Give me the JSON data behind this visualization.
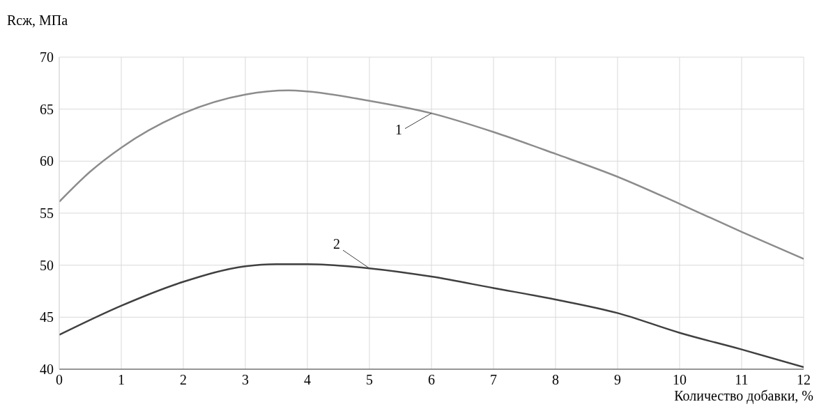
{
  "chart_data": {
    "type": "line",
    "xlabel": "Количество добавки, %",
    "ylabel": "Rсж, МПа",
    "xlim": [
      0,
      12
    ],
    "xticks": [
      0,
      1,
      2,
      3,
      4,
      5,
      6,
      7,
      8,
      9,
      10,
      11,
      12
    ],
    "ylim": [
      40,
      70
    ],
    "yticks": [
      40,
      45,
      50,
      55,
      60,
      65,
      70
    ],
    "grid": true,
    "marker": "none",
    "line_style": "solid",
    "series": [
      {
        "color": "#8c8c8c",
        "x": [
          0,
          0.5,
          1,
          2,
          3,
          3.7,
          4,
          5,
          6,
          7,
          8,
          9,
          10,
          11,
          12
        ],
        "values": [
          56.1,
          59,
          61.3,
          64.6,
          66.4,
          66.8,
          66.7,
          65.8,
          64.6,
          62.8,
          60.7,
          58.5,
          55.9,
          53.2,
          50.6
        ]
      },
      {
        "color": "#404040",
        "x": [
          0,
          1,
          2,
          3,
          3.5,
          4,
          5,
          6,
          7,
          8,
          9,
          10,
          11,
          12
        ],
        "values": [
          43.3,
          46.1,
          48.4,
          49.9,
          50.1,
          50.1,
          49.7,
          48.9,
          47.8,
          46.7,
          45.4,
          43.5,
          41.9,
          40.2
        ]
      }
    ],
    "annotations": [
      {
        "text": "1",
        "x": 6,
        "y": 64.6
      },
      {
        "text": "2",
        "x": 5,
        "y": 49.7
      }
    ]
  }
}
